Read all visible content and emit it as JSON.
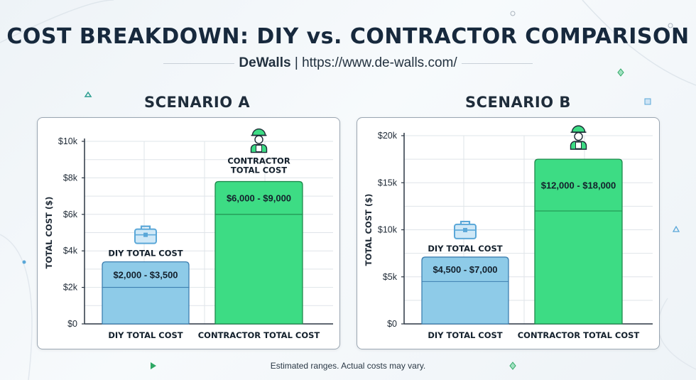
{
  "header": {
    "title": "COST BREAKDOWN: DIY vs. CONTRACTOR COMPARISON",
    "brand": "DeWalls",
    "separator": "|",
    "url": "https://www.de-walls.com/"
  },
  "footer": {
    "note": "Estimated ranges. Actual costs may vary."
  },
  "colors": {
    "diy_fill": "#8ecbe8",
    "diy_stroke": "#3d7fb0",
    "contractor_fill": "#3ddc84",
    "contractor_stroke": "#1f8a4c",
    "grid": "#dfe4e9",
    "axis": "#2b3643",
    "icon_blue": "#5aa7d8",
    "icon_green": "#2ea864"
  },
  "icons": {
    "diy": "toolbox-icon",
    "contractor": "worker-icon"
  },
  "chart_data": [
    {
      "type": "bar",
      "title": "SCENARIO A",
      "ylabel": "TOTAL COST ($)",
      "ylim": [
        0,
        10000
      ],
      "yticks": [
        0,
        2000,
        4000,
        6000,
        8000,
        10000
      ],
      "ytick_labels": [
        "$0",
        "$2k",
        "$4k",
        "$6k",
        "$8k",
        "$10k"
      ],
      "grid": true,
      "categories": [
        "DIY TOTAL COST",
        "CONTRACTOR TOTAL COST"
      ],
      "ranges": [
        [
          2000,
          3500
        ],
        [
          6000,
          9000
        ]
      ],
      "bar_tops": [
        3400,
        7800
      ],
      "range_labels": [
        "$2,000 - $3,500",
        "$6,000 - $9,000"
      ],
      "bar_titles": [
        "DIY TOTAL COST",
        "CONTRACTOR TOTAL COST"
      ]
    },
    {
      "type": "bar",
      "title": "SCENARIO B",
      "ylabel": "TOTAL COST ($)",
      "ylim": [
        0,
        20000
      ],
      "yticks": [
        0,
        5000,
        10000,
        15000,
        20000
      ],
      "ytick_labels": [
        "$0",
        "$5k",
        "$10k",
        "$15k",
        "$20k"
      ],
      "grid": true,
      "categories": [
        "DIY TOTAL COST",
        "CONTRACTOR TOTAL COST"
      ],
      "ranges": [
        [
          4500,
          7000
        ],
        [
          12000,
          18000
        ]
      ],
      "bar_tops": [
        7100,
        17500
      ],
      "range_labels": [
        "$4,500 - $7,000",
        "$12,000 - $18,000"
      ],
      "bar_titles": [
        "DIY TOTAL COST",
        ""
      ]
    }
  ]
}
